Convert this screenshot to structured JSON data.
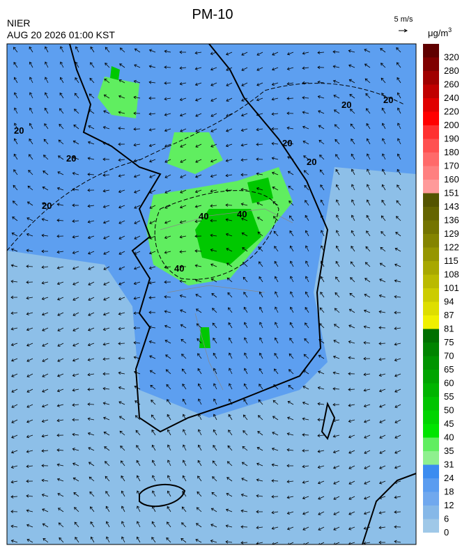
{
  "header": {
    "title": "PM-10",
    "agency": "NIER",
    "time": "AUG 20 2026 01:00 KST",
    "wind_scale": "5 m/s",
    "unit": "μg/m",
    "unit_power": "3"
  },
  "legend": {
    "levels": [
      "0",
      "6",
      "12",
      "18",
      "24",
      "31",
      "35",
      "40",
      "45",
      "50",
      "55",
      "60",
      "65",
      "70",
      "75",
      "81",
      "87",
      "94",
      "101",
      "108",
      "115",
      "122",
      "129",
      "136",
      "143",
      "151",
      "160",
      "170",
      "180",
      "190",
      "200",
      "220",
      "240",
      "260",
      "280",
      "320"
    ],
    "colors": [
      "#9fc8e8",
      "#86b8e8",
      "#70a8ee",
      "#5a9cf0",
      "#3b8cf0",
      "#8ef08e",
      "#60ee60",
      "#00e400",
      "#00d400",
      "#00c400",
      "#00b400",
      "#00a400",
      "#009400",
      "#008400",
      "#007000",
      "#f0f000",
      "#dede00",
      "#cccc00",
      "#baba00",
      "#a8a800",
      "#969600",
      "#848400",
      "#747400",
      "#646400",
      "#545400",
      "#ff9a9a",
      "#ff8080",
      "#ff6a6a",
      "#ff5050",
      "#ff3030",
      "#ff0000",
      "#e00000",
      "#c00000",
      "#a00000",
      "#800000",
      "#600000"
    ]
  },
  "map": {
    "contour_labels": [
      "20",
      "20",
      "20",
      "20",
      "20",
      "20",
      "20",
      "40",
      "40",
      "40"
    ]
  }
}
